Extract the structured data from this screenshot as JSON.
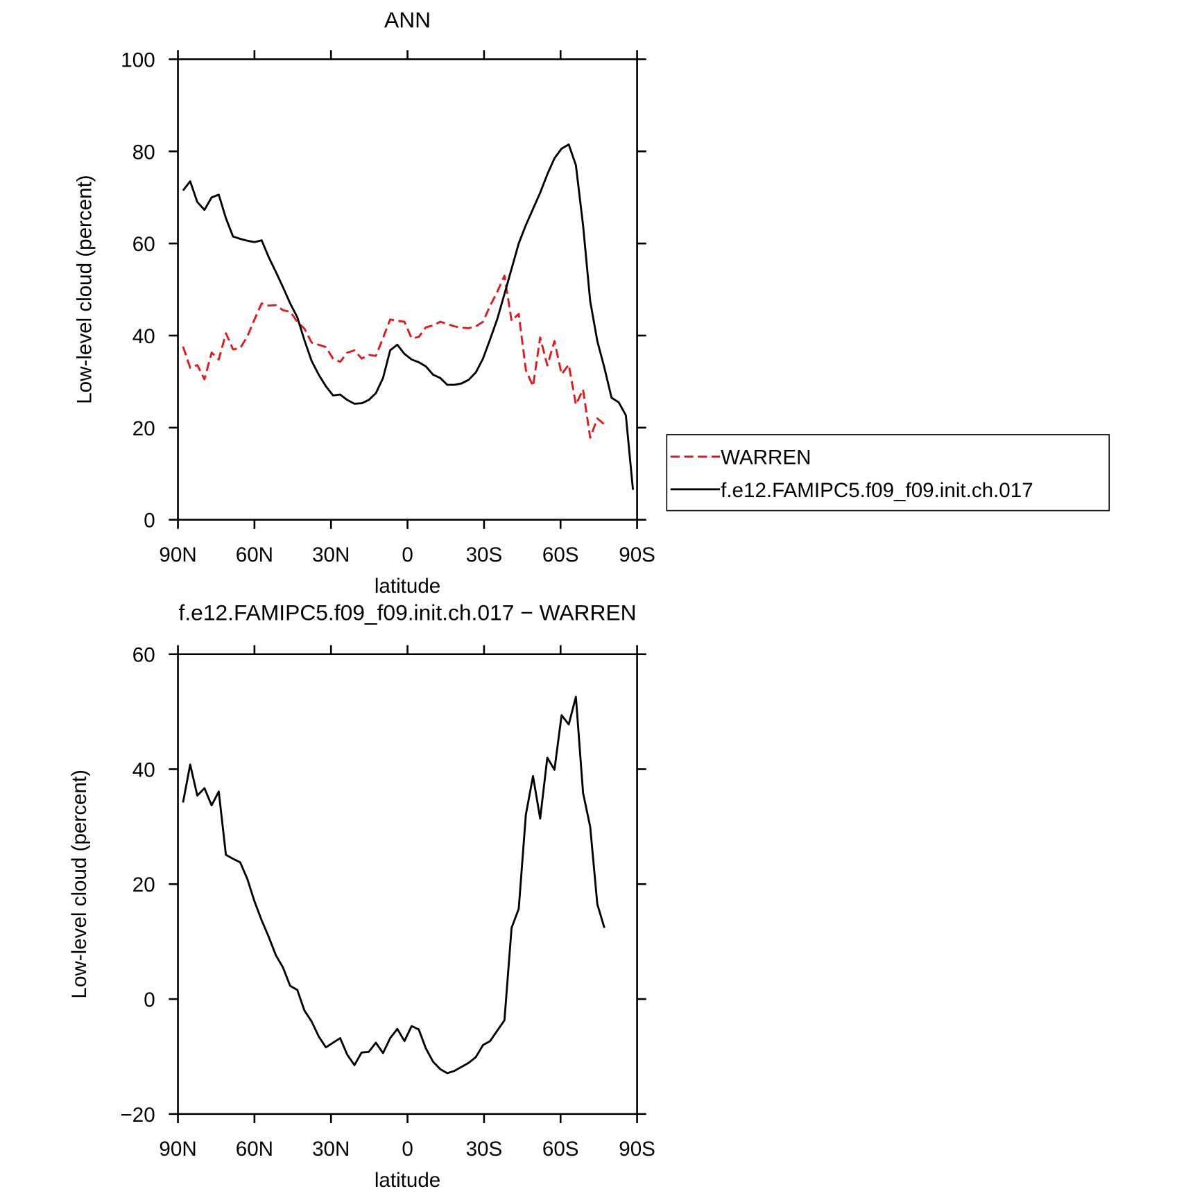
{
  "chart_data": [
    {
      "type": "line",
      "title": "ANN",
      "xlabel": "latitude",
      "ylabel": "Low-level cloud (percent)",
      "x": [
        88,
        85.2,
        82.4,
        79.6,
        76.8,
        74,
        71.2,
        68.4,
        65.6,
        62.8,
        60,
        57.2,
        54.4,
        51.6,
        48.8,
        46,
        43.2,
        40.4,
        37.6,
        34.8,
        32,
        29.2,
        26.4,
        23.6,
        20.8,
        18,
        15.2,
        12.4,
        9.6,
        6.8,
        4,
        1.2,
        -1.6,
        -4.4,
        -7.2,
        -10,
        -12.8,
        -15.6,
        -18.4,
        -21.2,
        -24,
        -26.8,
        -29.6,
        -32.4,
        -35.2,
        -38,
        -40.8,
        -43.6,
        -46.4,
        -49.2,
        -52,
        -54.8,
        -57.6,
        -60.4,
        -63.2,
        -66,
        -68.8,
        -71.6,
        -74.4,
        -77.2,
        -80,
        -82.8,
        -85.6,
        -88.4
      ],
      "xlim": [
        90,
        -90
      ],
      "xticks": [
        {
          "value": 90,
          "label": "90N"
        },
        {
          "value": 60,
          "label": "60N"
        },
        {
          "value": 30,
          "label": "30N"
        },
        0,
        {
          "value": -30,
          "label": "30S"
        },
        {
          "value": -60,
          "label": "60S"
        },
        {
          "value": -90,
          "label": "90S"
        }
      ],
      "ylim": [
        0,
        100
      ],
      "yticks": [
        0,
        20,
        40,
        60,
        80,
        100
      ],
      "legend": "right",
      "series": [
        {
          "name": "WARREN",
          "color": "#e8141c",
          "dash": true,
          "values": [
            37.6,
            33,
            33.6,
            30.5,
            36.3,
            34.8,
            40.5,
            37,
            37.3,
            39.8,
            43.5,
            47,
            46.5,
            46.6,
            45.5,
            45.2,
            43,
            41.5,
            38.5,
            38,
            37.5,
            35,
            34.3,
            36.3,
            36.8,
            35,
            35.8,
            35.6,
            39.5,
            43.5,
            43.2,
            43,
            39.4,
            39.7,
            41.8,
            42.2,
            43,
            42.5,
            42,
            41.7,
            41.6,
            42,
            43,
            46.5,
            49.5,
            53,
            43.2,
            44.7,
            32.5,
            29,
            39.6,
            33.5,
            38.8,
            31.6,
            33.7,
            25,
            28.3,
            17.8,
            22,
            20.7,
            null,
            null,
            null,
            null
          ]
        },
        {
          "name": "f.e12.FAMIPC5.f09_f09.init.ch.017",
          "color": "#000000",
          "dash": false,
          "values": [
            71.5,
            73.5,
            69,
            67.3,
            70,
            70.6,
            65.5,
            61.5,
            61,
            60.6,
            60.3,
            60.7,
            57,
            53.8,
            50.5,
            47,
            44,
            39,
            34.5,
            31.5,
            29,
            27,
            27.2,
            26,
            25.2,
            25.3,
            26,
            27.5,
            30.8,
            36.8,
            38,
            36,
            34.8,
            34.2,
            33.3,
            31.5,
            30.8,
            29.3,
            29.3,
            29.6,
            30.4,
            32,
            35,
            39.2,
            43.6,
            49,
            54.5,
            60,
            64,
            67.5,
            71,
            75,
            78.5,
            80.6,
            81.5,
            77,
            64,
            47.5,
            38.8,
            33,
            26.5,
            25.5,
            22.7,
            6.5
          ]
        }
      ]
    },
    {
      "type": "line",
      "title": "f.e12.FAMIPC5.f09_f09.init.ch.017 − WARREN",
      "xlabel": "latitude",
      "ylabel": "Low-level cloud (percent)",
      "x": [
        88,
        85.2,
        82.4,
        79.6,
        76.8,
        74,
        71.2,
        68.4,
        65.6,
        62.8,
        60,
        57.2,
        54.4,
        51.6,
        48.8,
        46,
        43.2,
        40.4,
        37.6,
        34.8,
        32,
        29.2,
        26.4,
        23.6,
        20.8,
        18,
        15.2,
        12.4,
        9.6,
        6.8,
        4,
        1.2,
        -1.6,
        -4.4,
        -7.2,
        -10,
        -12.8,
        -15.6,
        -18.4,
        -21.2,
        -24,
        -26.8,
        -29.6,
        -32.4,
        -35.2,
        -38,
        -40.8,
        -43.6,
        -46.4,
        -49.2,
        -52,
        -54.8,
        -57.6,
        -60.4,
        -63.2,
        -66,
        -68.8,
        -71.6,
        -74.4,
        -77.2
      ],
      "xlim": [
        90,
        -90
      ],
      "xticks": [
        {
          "value": 90,
          "label": "90N"
        },
        {
          "value": 60,
          "label": "60N"
        },
        {
          "value": 30,
          "label": "30N"
        },
        0,
        {
          "value": -30,
          "label": "30S"
        },
        {
          "value": -60,
          "label": "60S"
        },
        {
          "value": -90,
          "label": "90S"
        }
      ],
      "ylim": [
        -20,
        60
      ],
      "yticks": [
        {
          "value": -20,
          "label": "−20"
        },
        0,
        20,
        40,
        60
      ],
      "color": "#000000",
      "values": [
        34.2,
        40.8,
        35.4,
        36.7,
        33.7,
        36.1,
        25.1,
        24.4,
        23.8,
        20.9,
        17,
        13.7,
        10.8,
        7.6,
        5.5,
        2.3,
        1.6,
        -2,
        -3.9,
        -6.5,
        -8.4,
        -7.6,
        -6.8,
        -9.7,
        -11.5,
        -9.3,
        -9.2,
        -7.6,
        -9.4,
        -6.8,
        -5.2,
        -7.3,
        -4.7,
        -5.3,
        -8.6,
        -10.9,
        -12.2,
        -12.9,
        -12.5,
        -11.8,
        -11.1,
        -10.1,
        -8,
        -7.3,
        -5.5,
        -3.7,
        12.4,
        15.7,
        32.1,
        38.8,
        31.4,
        42,
        39.9,
        49.4,
        47.8,
        52.6,
        35.9,
        30,
        16.5,
        12.4
      ]
    }
  ]
}
